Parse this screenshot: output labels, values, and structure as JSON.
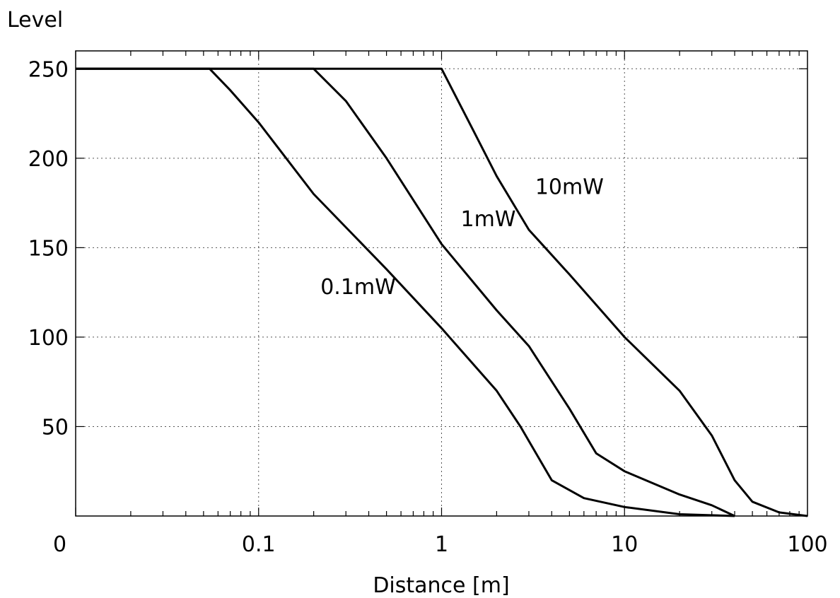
{
  "chart_data": {
    "type": "line",
    "title": "",
    "xlabel": "Distance [m]",
    "ylabel": "Level",
    "xscale": "log",
    "xlim": [
      0.01,
      100
    ],
    "ylim": [
      0,
      260
    ],
    "grid": true,
    "x_tick_labels": [
      "0",
      "0.1",
      "1",
      "10",
      "100"
    ],
    "y_tick_labels": [
      "50",
      "100",
      "150",
      "200",
      "250"
    ],
    "y_ticks": [
      50,
      100,
      150,
      200,
      250
    ],
    "series": [
      {
        "name": "0.1mW",
        "x": [
          0.01,
          0.054,
          0.07,
          0.1,
          0.2,
          0.5,
          1,
          2,
          2.7,
          4,
          6,
          10,
          20,
          40
        ],
        "y": [
          250,
          250,
          238,
          220,
          180,
          138,
          105,
          70,
          50,
          20,
          10,
          5,
          1,
          0
        ]
      },
      {
        "name": "1mW",
        "x": [
          0.01,
          0.2,
          0.3,
          0.5,
          1,
          2,
          3,
          5,
          7,
          10,
          20,
          30,
          40
        ],
        "y": [
          250,
          250,
          232,
          200,
          152,
          115,
          95,
          60,
          35,
          25,
          12,
          6,
          0
        ]
      },
      {
        "name": "10mW",
        "x": [
          0.01,
          1,
          1.5,
          2,
          3,
          5,
          10,
          20,
          30,
          40,
          50,
          70,
          100
        ],
        "y": [
          250,
          250,
          215,
          190,
          160,
          135,
          100,
          70,
          45,
          20,
          8,
          2,
          0
        ]
      }
    ],
    "annotations": [
      {
        "text": "0.1mW",
        "x": 0.35,
        "y": 124
      },
      {
        "text": "1mW",
        "x": 1.8,
        "y": 162
      },
      {
        "text": "10mW",
        "x": 5.0,
        "y": 180
      }
    ]
  }
}
